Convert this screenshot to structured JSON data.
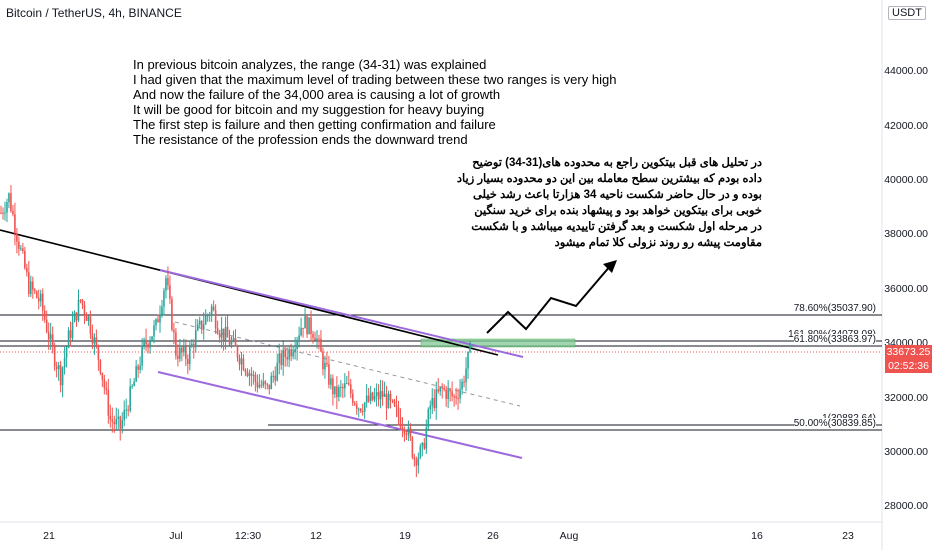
{
  "header": {
    "symbol": "Bitcoin / TetherUS, 4h, BINANCE"
  },
  "currency_badge": "USDT",
  "notes_en": [
    "In previous bitcoin analyzes, the range (34-31) was explained",
    "I had given that the maximum level of trading between these two ranges is very high",
    "And now the failure of the 34,000 area is causing a lot of growth",
    "It will be good for bitcoin and my suggestion for heavy buying",
    "The first step is failure and then getting confirmation and failure",
    "The resistance of the profession ends the downward trend"
  ],
  "notes_fa": [
    "در تحلیل های قبل بیتکوین راجع به محدوده های(31-34) توضیح",
    "داده بودم که بیشترین سطح معامله بین این دو محدوده بسیار زیاد",
    "بوده و در حال حاضر شکست ناحیه 34 هزارتا باعث رشد خیلی",
    "خوبی برای بیتکوین خواهد بود و پیشهاد بنده برای خرید سنگین",
    "در مرحله اول شکست و بعد گرفتن تاییدیه میباشد و با شکست",
    "مقاومت پیشه رو روند نزولی کلا تمام میشود"
  ],
  "fib_labels": [
    {
      "text": "78.60%(35037.90)",
      "price": 35037.9
    },
    {
      "text": "161.80%(34078.08)",
      "price": 34078.08
    },
    {
      "text": "61.80%(33863.97)",
      "price": 33863.97
    },
    {
      "text": "1(30882.64)",
      "price": 30882.64
    },
    {
      "text": "50.00%(30839.85)",
      "price": 30839.85
    }
  ],
  "current_price": {
    "value": "33673.25",
    "countdown": "02:52:36"
  },
  "colors": {
    "up": "#26a69a",
    "down": "#ef5350",
    "channel": "#9c6ade",
    "trend": "#000000",
    "zone": "#81c995"
  },
  "chart_data": {
    "type": "candlestick",
    "title": "Bitcoin / TetherUS, 4h, BINANCE",
    "y_ticks": [
      "28000.00",
      "30000.00",
      "32000.00",
      "34000.00",
      "36000.00",
      "38000.00",
      "40000.00",
      "42000.00",
      "44000.00"
    ],
    "x_ticks": [
      "21",
      "Jul",
      "12:30",
      "12",
      "19",
      "26",
      "Aug",
      "16",
      "23"
    ],
    "ylim": [
      27200,
      46000
    ],
    "close_path": [
      {
        "t": 0,
        "close": 38800
      },
      {
        "t": 4,
        "close": 39400
      },
      {
        "t": 8,
        "close": 38000
      },
      {
        "t": 14,
        "close": 36100
      },
      {
        "t": 20,
        "close": 35500
      },
      {
        "t": 26,
        "close": 33700
      },
      {
        "t": 30,
        "close": 32800
      },
      {
        "t": 34,
        "close": 34200
      },
      {
        "t": 40,
        "close": 35600
      },
      {
        "t": 44,
        "close": 34900
      },
      {
        "t": 50,
        "close": 33200
      },
      {
        "t": 55,
        "close": 31200
      },
      {
        "t": 60,
        "close": 30900
      },
      {
        "t": 66,
        "close": 32300
      },
      {
        "t": 72,
        "close": 33900
      },
      {
        "t": 78,
        "close": 34600
      },
      {
        "t": 83,
        "close": 36400
      },
      {
        "t": 88,
        "close": 33700
      },
      {
        "t": 94,
        "close": 33500
      },
      {
        "t": 98,
        "close": 34300
      },
      {
        "t": 106,
        "close": 35300
      },
      {
        "t": 110,
        "close": 34500
      },
      {
        "t": 116,
        "close": 34000
      },
      {
        "t": 122,
        "close": 33300
      },
      {
        "t": 128,
        "close": 32600
      },
      {
        "t": 134,
        "close": 32300
      },
      {
        "t": 140,
        "close": 33300
      },
      {
        "t": 146,
        "close": 33800
      },
      {
        "t": 152,
        "close": 34800
      },
      {
        "t": 158,
        "close": 34400
      },
      {
        "t": 162,
        "close": 33300
      },
      {
        "t": 168,
        "close": 32100
      },
      {
        "t": 174,
        "close": 32400
      },
      {
        "t": 180,
        "close": 31700
      },
      {
        "t": 186,
        "close": 31900
      },
      {
        "t": 192,
        "close": 32100
      },
      {
        "t": 198,
        "close": 31500
      },
      {
        "t": 204,
        "close": 30900
      },
      {
        "t": 208,
        "close": 29800
      },
      {
        "t": 212,
        "close": 30000
      },
      {
        "t": 216,
        "close": 31700
      },
      {
        "t": 222,
        "close": 32300
      },
      {
        "t": 228,
        "close": 32000
      },
      {
        "t": 232,
        "close": 32500
      },
      {
        "t": 236,
        "close": 33673
      }
    ]
  }
}
